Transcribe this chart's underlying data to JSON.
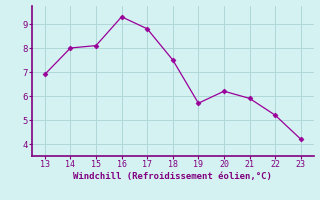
{
  "x": [
    13,
    14,
    15,
    16,
    17,
    18,
    19,
    20,
    21,
    22,
    23
  ],
  "y": [
    6.9,
    8.0,
    8.1,
    9.3,
    8.8,
    7.5,
    5.7,
    6.2,
    5.9,
    5.2,
    4.2
  ],
  "line_color": "#990099",
  "marker": "D",
  "marker_size": 2.5,
  "xlabel": "Windchill (Refroidissement éolien,°C)",
  "xlabel_color": "#800080",
  "bg_color": "#d5f2f2",
  "grid_color": "#b0d8d8",
  "tick_color": "#800080",
  "spine_color": "#800080",
  "xlim": [
    12.5,
    23.5
  ],
  "ylim": [
    3.5,
    9.75
  ],
  "xticks": [
    13,
    14,
    15,
    16,
    17,
    18,
    19,
    20,
    21,
    22,
    23
  ],
  "yticks": [
    4,
    5,
    6,
    7,
    8,
    9
  ]
}
